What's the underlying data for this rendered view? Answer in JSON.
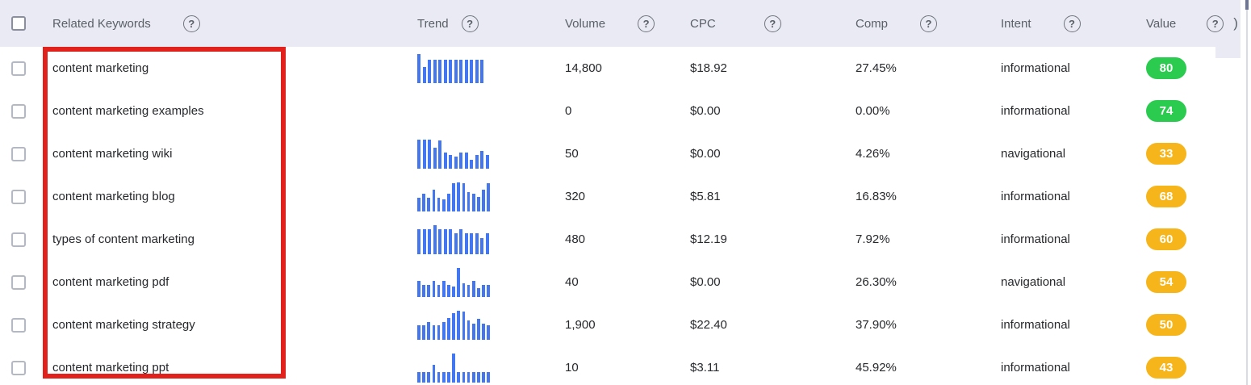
{
  "colors": {
    "header_bg": "#e9eaf4",
    "trend_bar_blue": "#4377f2",
    "badge_green": "#2bcb50",
    "badge_yellow": "#f6b51b",
    "annotation_red": "#e0211c"
  },
  "header": {
    "columns": [
      {
        "label": "Related Keywords",
        "help_icon": "?"
      },
      {
        "label": "Trend",
        "help_icon": "?"
      },
      {
        "label": "Volume",
        "help_icon": "?"
      },
      {
        "label": "CPC",
        "help_icon": "?"
      },
      {
        "label": "Comp",
        "help_icon": "?"
      },
      {
        "label": "Intent",
        "help_icon": "?"
      },
      {
        "label": "Value",
        "help_icon": "?"
      }
    ],
    "overflow_glyph": ")"
  },
  "table": {
    "rows": [
      {
        "keyword": "content marketing",
        "volume": "14,800",
        "cpc": "$18.92",
        "comp": "27.45%",
        "intent": "informational",
        "value": "80",
        "value_color": "green"
      },
      {
        "keyword": "content marketing examples",
        "volume": "0",
        "cpc": "$0.00",
        "comp": "0.00%",
        "intent": "informational",
        "value": "74",
        "value_color": "green"
      },
      {
        "keyword": "content marketing wiki",
        "volume": "50",
        "cpc": "$0.00",
        "comp": "4.26%",
        "intent": "navigational",
        "value": "33",
        "value_color": "yellow"
      },
      {
        "keyword": "content marketing blog",
        "volume": "320",
        "cpc": "$5.81",
        "comp": "16.83%",
        "intent": "informational",
        "value": "68",
        "value_color": "yellow"
      },
      {
        "keyword": "types of content marketing",
        "volume": "480",
        "cpc": "$12.19",
        "comp": "7.92%",
        "intent": "informational",
        "value": "60",
        "value_color": "yellow"
      },
      {
        "keyword": "content marketing pdf",
        "volume": "40",
        "cpc": "$0.00",
        "comp": "26.30%",
        "intent": "navigational",
        "value": "54",
        "value_color": "yellow"
      },
      {
        "keyword": "content marketing strategy",
        "volume": "1,900",
        "cpc": "$22.40",
        "comp": "37.90%",
        "intent": "informational",
        "value": "50",
        "value_color": "yellow"
      },
      {
        "keyword": "content marketing ppt",
        "volume": "10",
        "cpc": "$3.11",
        "comp": "45.92%",
        "intent": "informational",
        "value": "43",
        "value_color": "yellow"
      }
    ]
  },
  "chart_data": [
    {
      "type": "bar",
      "label": "content marketing trend",
      "values": [
        100,
        55,
        80,
        80,
        80,
        80,
        80,
        80,
        80,
        80,
        80,
        80,
        80
      ],
      "ylim": [
        0,
        100
      ],
      "color": "#4377f2"
    },
    {
      "type": "bar",
      "label": "content marketing examples trend",
      "values": [],
      "ylim": [
        0,
        100
      ],
      "color": "#4377f2"
    },
    {
      "type": "bar",
      "label": "content marketing wiki trend",
      "values": [
        100,
        100,
        100,
        70,
        95,
        55,
        45,
        40,
        55,
        55,
        30,
        45,
        60,
        45
      ],
      "ylim": [
        0,
        100
      ],
      "color": "#4377f2"
    },
    {
      "type": "bar",
      "label": "content marketing blog trend",
      "values": [
        45,
        60,
        45,
        75,
        45,
        40,
        60,
        95,
        100,
        95,
        65,
        60,
        50,
        75,
        95
      ],
      "ylim": [
        0,
        100
      ],
      "color": "#4377f2"
    },
    {
      "type": "bar",
      "label": "types of content marketing trend",
      "values": [
        85,
        85,
        85,
        100,
        85,
        85,
        85,
        70,
        85,
        70,
        70,
        70,
        55,
        70
      ],
      "ylim": [
        0,
        100
      ],
      "color": "#4377f2"
    },
    {
      "type": "bar",
      "label": "content marketing pdf trend",
      "values": [
        55,
        40,
        40,
        55,
        40,
        55,
        40,
        35,
        100,
        45,
        40,
        55,
        30,
        40,
        40
      ],
      "ylim": [
        0,
        100
      ],
      "color": "#4377f2"
    },
    {
      "type": "bar",
      "label": "content marketing strategy trend",
      "values": [
        50,
        50,
        60,
        50,
        50,
        60,
        75,
        90,
        100,
        95,
        65,
        55,
        70,
        55,
        50
      ],
      "ylim": [
        0,
        100
      ],
      "color": "#4377f2"
    },
    {
      "type": "bar",
      "label": "content marketing ppt trend",
      "values": [
        35,
        35,
        35,
        60,
        35,
        35,
        35,
        100,
        35,
        35,
        35,
        35,
        35,
        35,
        35
      ],
      "ylim": [
        0,
        100
      ],
      "color": "#4377f2"
    }
  ],
  "annotation": {
    "type": "highlight-box",
    "target": "related-keywords-column"
  }
}
